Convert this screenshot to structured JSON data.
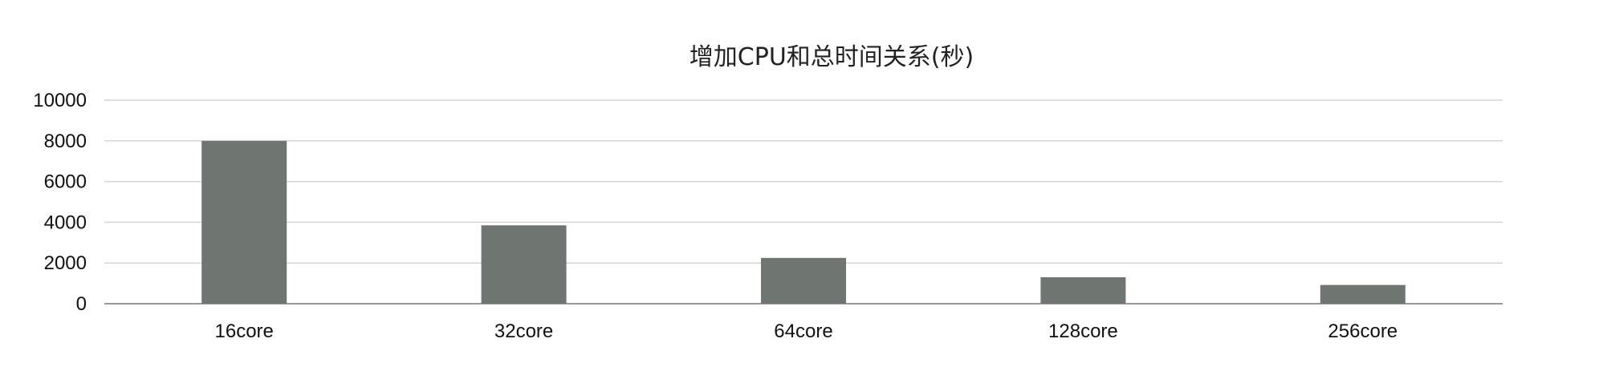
{
  "chart_data": {
    "type": "bar",
    "title": "增加CPU和总时间关系(秒)",
    "xlabel": "",
    "ylabel": "",
    "categories": [
      "16core",
      "32core",
      "64core",
      "128core",
      "256core"
    ],
    "values": [
      8000,
      3850,
      2250,
      1300,
      920
    ],
    "ylim": [
      0,
      10000
    ],
    "yticks": [
      "0",
      "2000",
      "4000",
      "6000",
      "8000",
      "10000"
    ],
    "grid": true,
    "legend": "none",
    "bar_color": "#6f7571"
  }
}
